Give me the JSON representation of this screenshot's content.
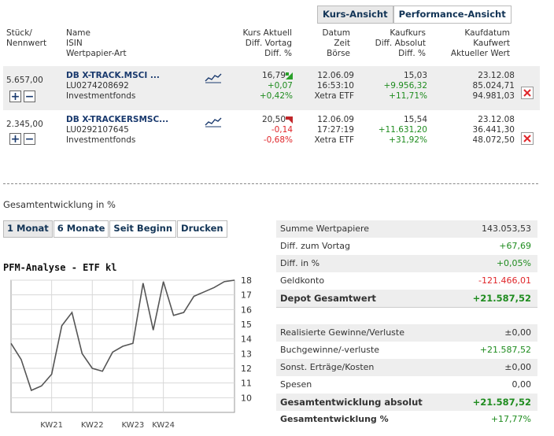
{
  "view_tabs": [
    "Kurs-Ansicht",
    "Performance-Ansicht"
  ],
  "columns": {
    "c1": [
      "Stück/",
      "Nennwert"
    ],
    "c2": [
      "Name",
      "ISIN",
      "Wertpapier-Art"
    ],
    "c3": [
      "Kurs Aktuell",
      "Diff. Vortag",
      "Diff. %"
    ],
    "c4": [
      "Datum",
      "Zeit",
      "Börse"
    ],
    "c5": [
      "Kaufkurs",
      "Diff. Absolut",
      "Diff. %"
    ],
    "c6": [
      "Kaufdatum",
      "Kaufwert",
      "Aktueller Wert"
    ]
  },
  "holdings": [
    {
      "stueck": "5.657,00",
      "name": "DB X-TRACK.MSCI ...",
      "isin": "LU0274208692",
      "art": "Investmentfonds",
      "kurs": "16,79",
      "diff_vortag": "+0,07",
      "diff_pct": "+0,42%",
      "trend": "up",
      "datum": "12.06.09",
      "zeit": "16:53:10",
      "boerse": "Xetra ETF",
      "kaufkurs": "15,03",
      "diff_abs": "+9.956,32",
      "diff_abs_pct": "+11,71%",
      "kaufdatum": "23.12.08",
      "kaufwert": "85.024,71",
      "akt_wert": "94.981,03"
    },
    {
      "stueck": "2.345,00",
      "name": "DB X-TRACKERSMSC...",
      "isin": "LU0292107645",
      "art": "Investmentfonds",
      "kurs": "20,50",
      "diff_vortag": "-0,14",
      "diff_pct": "-0,68%",
      "trend": "down",
      "datum": "12.06.09",
      "zeit": "17:27:19",
      "boerse": "Xetra ETF",
      "kaufkurs": "15,54",
      "diff_abs": "+11.631,20",
      "diff_abs_pct": "+31,92%",
      "kaufdatum": "23.12.08",
      "kaufwert": "36.441,30",
      "akt_wert": "48.072,50"
    }
  ],
  "section_title": "Gesamtentwicklung in %",
  "period_tabs": [
    "1 Monat",
    "6 Monate",
    "Seit Beginn",
    "Drucken"
  ],
  "chart_title": "PFM-Analyse - ETF kl",
  "summary": [
    {
      "label": "Summe Wertpapiere",
      "value": "143.053,53",
      "style": "normal",
      "color": "#333333"
    },
    {
      "label": "Diff. zum Vortag",
      "value": "+67,69",
      "style": "normal",
      "color": "#1f8c1f"
    },
    {
      "label": "Diff. in %",
      "value": "+0,05%",
      "style": "normal",
      "color": "#1f8c1f"
    },
    {
      "label": "Geldkonto",
      "value": "-121.466,01",
      "style": "normal",
      "color": "#e0262a"
    },
    {
      "label": "Depot Gesamtwert",
      "value": "+21.587,52",
      "style": "bold",
      "color": "#1f8c1f"
    }
  ],
  "summary2": [
    {
      "label": "Realisierte Gewinne/Verluste",
      "value": "±0,00",
      "style": "normal",
      "color": "#333333"
    },
    {
      "label": "Buchgewinne/-verluste",
      "value": "+21.587,52",
      "style": "normal",
      "color": "#1f8c1f"
    },
    {
      "label": "Sonst. Erträge/Kosten",
      "value": "±0,00",
      "style": "normal",
      "color": "#333333"
    },
    {
      "label": "Spesen",
      "value": "0,00",
      "style": "normal",
      "color": "#333333"
    },
    {
      "label": "Gesamtentwicklung absolut",
      "value": "+21.587,52",
      "style": "bold",
      "color": "#1f8c1f"
    },
    {
      "label": "Gesamtentwicklung %",
      "value": "+17,77%",
      "style": "bold-label",
      "color": "#1f8c1f"
    }
  ],
  "chart_data": {
    "type": "line",
    "title": "PFM-Analyse - ETF kl",
    "x": [
      0,
      1,
      2,
      3,
      4,
      5,
      6,
      7,
      8,
      9,
      10,
      11,
      12,
      13,
      14,
      15,
      16,
      17,
      18,
      19,
      20,
      21,
      22
    ],
    "values": [
      13.7,
      12.6,
      10.5,
      10.8,
      11.6,
      14.9,
      15.8,
      13.0,
      12.0,
      11.8,
      13.1,
      13.5,
      13.7,
      17.8,
      14.6,
      17.9,
      15.6,
      15.8,
      16.9,
      17.2,
      17.5,
      17.9,
      18.0
    ],
    "xticks": [
      "KW21",
      "KW22",
      "KW23",
      "KW24"
    ],
    "yticks": [
      10,
      11,
      12,
      13,
      14,
      15,
      16,
      17,
      18
    ],
    "ylim": [
      9,
      18
    ],
    "grid": true,
    "line_color": "#555555"
  }
}
